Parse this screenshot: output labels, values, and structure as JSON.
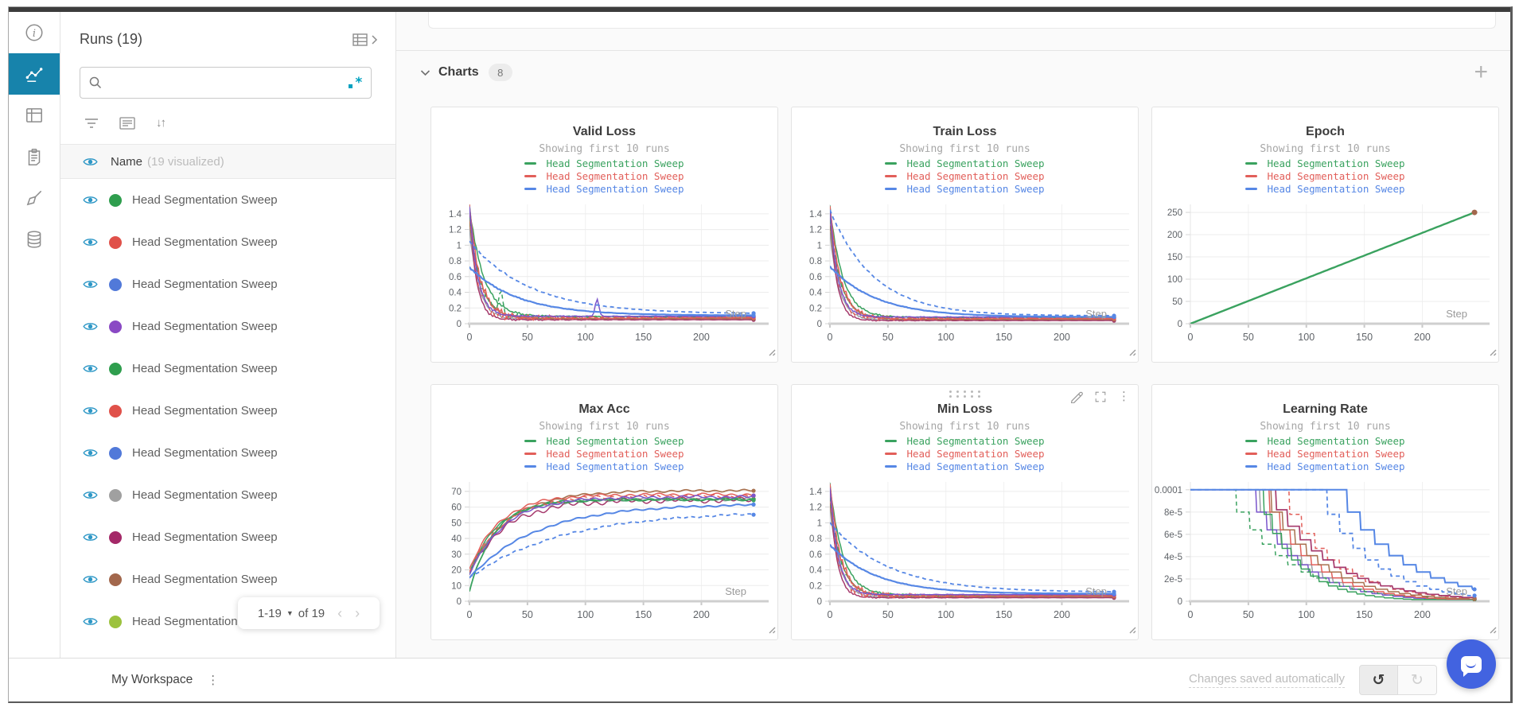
{
  "sidebar": {
    "title": "Runs (19)",
    "name_header": {
      "label": "Name",
      "suffix": "(19 visualized)"
    },
    "run_label": "Head Segmentation Sweep",
    "runs": [
      {
        "color": "#2f9e4e",
        "label": "Head Segmentation Sweep"
      },
      {
        "color": "#e0514a",
        "label": "Head Segmentation Sweep"
      },
      {
        "color": "#5179d9",
        "label": "Head Segmentation Sweep"
      },
      {
        "color": "#8a49c4",
        "label": "Head Segmentation Sweep"
      },
      {
        "color": "#2f9e4e",
        "label": "Head Segmentation Sweep"
      },
      {
        "color": "#e0514a",
        "label": "Head Segmentation Sweep"
      },
      {
        "color": "#5179d9",
        "label": "Head Segmentation Sweep"
      },
      {
        "color": "#a0a0a0",
        "label": "Head Segmentation Sweep"
      },
      {
        "color": "#a42868",
        "label": "Head Segmentation Sweep"
      },
      {
        "color": "#a2674c",
        "label": "Head Segmentation Sweep"
      },
      {
        "color": "#9cc23e",
        "label": "Head Segmentation Sweep"
      }
    ],
    "pagination": {
      "range": "1-19",
      "of": "of 19"
    }
  },
  "charts_section": {
    "title": "Charts",
    "count": "8"
  },
  "workspace_bar": {
    "title": "My Workspace",
    "status": "Changes saved automatically"
  },
  "icons": {
    "undo": "↺",
    "redo": "↻",
    "kebab": "⋮",
    "sort": "↓↑"
  },
  "accent": {
    "nav_active": "#1783ab",
    "eye": "#2d97c6",
    "regex": "#00a1c0",
    "chat_fab": "#4263e0"
  },
  "chart_data": [
    {
      "type": "line",
      "title": "Valid Loss",
      "subtitle": "Showing first 10 runs",
      "xlabel": "Step",
      "legend": [
        {
          "label": "Head Segmentation Sweep",
          "color": "#3aa25f"
        },
        {
          "label": "Head Segmentation Sweep",
          "color": "#e25f5a"
        },
        {
          "label": "Head Segmentation Sweep",
          "color": "#5687e5"
        }
      ],
      "x_ticks": [
        0,
        50,
        100,
        150,
        200
      ],
      "xlim": [
        0,
        258
      ],
      "xmax": 245,
      "ylim": [
        0,
        1.52
      ],
      "y_ticks": [
        {
          "v": 0,
          "l": "0"
        },
        {
          "v": 0.2,
          "l": "0.2"
        },
        {
          "v": 0.4,
          "l": "0.4"
        },
        {
          "v": 0.6,
          "l": "0.6"
        },
        {
          "v": 0.8,
          "l": "0.8"
        },
        {
          "v": 1,
          "l": "1"
        },
        {
          "v": 1.2,
          "l": "1.2"
        },
        {
          "v": 1.4,
          "l": "1.4"
        }
      ],
      "series": [
        {
          "color": "#9aa0a6",
          "model": "decay",
          "y0": 1.2,
          "yf": 0.055,
          "tau": 8,
          "noise": 0.015,
          "phase": 1
        },
        {
          "color": "#a63a6d",
          "model": "decay",
          "y0": 1.45,
          "yf": 0.05,
          "tau": 6,
          "noise": 0.015,
          "phase": 2
        },
        {
          "color": "#a8714f",
          "model": "decay",
          "y0": 1.3,
          "yf": 0.065,
          "tau": 10,
          "noise": 0.01,
          "phase": 3
        },
        {
          "color": "#3aa25f",
          "model": "decay",
          "y0": 1.5,
          "yf": 0.09,
          "tau": 12,
          "noise": 0.02,
          "phase": 4
        },
        {
          "color": "#3aa25f",
          "dash": true,
          "model": "decay",
          "y0": 1.4,
          "yf": 0.085,
          "tau": 9,
          "noise": 0.035,
          "phase": 5,
          "spike": {
            "x": 27,
            "h": 0.27
          }
        },
        {
          "color": "#e25f5a",
          "model": "decay",
          "y0": 1.5,
          "yf": 0.075,
          "tau": 9,
          "noise": 0.05,
          "phase": 6
        },
        {
          "color": "#e25f5a",
          "dash": true,
          "model": "decay",
          "y0": 1.45,
          "yf": 0.08,
          "tau": 7,
          "noise": 0.06,
          "phase": 7
        },
        {
          "color": "#7a55cc",
          "model": "decay",
          "y0": 1.5,
          "yf": 0.095,
          "tau": 7,
          "noise": 0.015,
          "phase": 8,
          "spike": {
            "x": 110,
            "h": 0.22
          }
        },
        {
          "color": "#5687e5",
          "dash": true,
          "model": "decay",
          "y0": 1.05,
          "yf": 0.125,
          "tau": 52,
          "noise": 0.012,
          "phase": 9,
          "w": 1.8
        },
        {
          "color": "#5687e5",
          "model": "decay",
          "y0": 0.72,
          "yf": 0.105,
          "tau": 42,
          "noise": 0.008,
          "phase": 10,
          "w": 2.2
        }
      ]
    },
    {
      "type": "line",
      "title": "Train Loss",
      "subtitle": "Showing first 10 runs",
      "xlabel": "Step",
      "legend": [
        {
          "label": "Head Segmentation Sweep",
          "color": "#3aa25f"
        },
        {
          "label": "Head Segmentation Sweep",
          "color": "#e25f5a"
        },
        {
          "label": "Head Segmentation Sweep",
          "color": "#5687e5"
        }
      ],
      "x_ticks": [
        0,
        50,
        100,
        150,
        200
      ],
      "xlim": [
        0,
        258
      ],
      "xmax": 245,
      "ylim": [
        0,
        1.52
      ],
      "y_ticks": [
        {
          "v": 0,
          "l": "0"
        },
        {
          "v": 0.2,
          "l": "0.2"
        },
        {
          "v": 0.4,
          "l": "0.4"
        },
        {
          "v": 0.6,
          "l": "0.6"
        },
        {
          "v": 0.8,
          "l": "0.8"
        },
        {
          "v": 1,
          "l": "1"
        },
        {
          "v": 1.2,
          "l": "1.2"
        },
        {
          "v": 1.4,
          "l": "1.4"
        }
      ],
      "series": [
        {
          "color": "#9aa0a6",
          "model": "decay",
          "y0": 1.15,
          "yf": 0.045,
          "tau": 8,
          "noise": 0.01,
          "phase": 1
        },
        {
          "color": "#a63a6d",
          "model": "decay",
          "y0": 1.4,
          "yf": 0.04,
          "tau": 6,
          "noise": 0.01,
          "phase": 2
        },
        {
          "color": "#a8714f",
          "model": "decay",
          "y0": 1.25,
          "yf": 0.055,
          "tau": 10,
          "noise": 0.008,
          "phase": 3
        },
        {
          "color": "#3aa25f",
          "model": "decay",
          "y0": 1.5,
          "yf": 0.08,
          "tau": 11,
          "noise": 0.015,
          "phase": 4
        },
        {
          "color": "#3aa25f",
          "dash": true,
          "model": "decay",
          "y0": 1.35,
          "yf": 0.075,
          "tau": 9,
          "noise": 0.02,
          "phase": 5
        },
        {
          "color": "#e25f5a",
          "model": "decay",
          "y0": 1.5,
          "yf": 0.065,
          "tau": 9,
          "noise": 0.035,
          "phase": 6
        },
        {
          "color": "#e25f5a",
          "dash": true,
          "model": "decay",
          "y0": 1.45,
          "yf": 0.07,
          "tau": 7,
          "noise": 0.04,
          "phase": 7
        },
        {
          "color": "#7a55cc",
          "model": "decay",
          "y0": 1.45,
          "yf": 0.085,
          "tau": 7,
          "noise": 0.012,
          "phase": 8
        },
        {
          "color": "#5687e5",
          "dash": true,
          "model": "decay",
          "y0": 1.45,
          "yf": 0.1,
          "tau": 38,
          "noise": 0.01,
          "phase": 9,
          "w": 1.8
        },
        {
          "color": "#5687e5",
          "model": "decay",
          "y0": 0.73,
          "yf": 0.085,
          "tau": 40,
          "noise": 0.006,
          "phase": 10,
          "w": 2.2
        }
      ]
    },
    {
      "type": "line",
      "title": "Epoch",
      "subtitle": "Showing first 10 runs",
      "xlabel": "Step",
      "legend": [
        {
          "label": "Head Segmentation Sweep",
          "color": "#3aa25f"
        },
        {
          "label": "Head Segmentation Sweep",
          "color": "#e25f5a"
        },
        {
          "label": "Head Segmentation Sweep",
          "color": "#5687e5"
        }
      ],
      "x_ticks": [
        0,
        50,
        100,
        150,
        200
      ],
      "xlim": [
        0,
        258
      ],
      "xmax": 245,
      "ylim": [
        0,
        268
      ],
      "y_ticks": [
        {
          "v": 0,
          "l": "0"
        },
        {
          "v": 50,
          "l": "50"
        },
        {
          "v": 100,
          "l": "100"
        },
        {
          "v": 150,
          "l": "150"
        },
        {
          "v": 200,
          "l": "200"
        },
        {
          "v": 250,
          "l": "250"
        }
      ],
      "series": [
        {
          "color": "#3aa25f",
          "model": "linear",
          "y0": 0,
          "y1": 250,
          "w": 2.4,
          "dot_color": "#a2674c",
          "dot_r": 3.5
        }
      ]
    },
    {
      "type": "line",
      "title": "Max Acc",
      "subtitle": "Showing first 10 runs",
      "xlabel": "Step",
      "legend": [
        {
          "label": "Head Segmentation Sweep",
          "color": "#3aa25f"
        },
        {
          "label": "Head Segmentation Sweep",
          "color": "#e25f5a"
        },
        {
          "label": "Head Segmentation Sweep",
          "color": "#5687e5"
        }
      ],
      "x_ticks": [
        0,
        50,
        100,
        150,
        200
      ],
      "xlim": [
        0,
        258
      ],
      "xmax": 245,
      "ylim": [
        0,
        76
      ],
      "y_ticks": [
        {
          "v": 0,
          "l": "0"
        },
        {
          "v": 10,
          "l": "10"
        },
        {
          "v": 20,
          "l": "20"
        },
        {
          "v": 30,
          "l": "30"
        },
        {
          "v": 40,
          "l": "40"
        },
        {
          "v": 50,
          "l": "50"
        },
        {
          "v": 60,
          "l": "60"
        },
        {
          "v": 70,
          "l": "70"
        }
      ],
      "series": [
        {
          "color": "#9aa0a6",
          "model": "rise",
          "y0": 16,
          "yf": 65,
          "tau": 26,
          "noise": 0.8,
          "phase": 1
        },
        {
          "color": "#a8714f",
          "model": "rise",
          "y0": 18,
          "yf": 70.5,
          "tau": 33,
          "noise": 0.6,
          "phase": 2,
          "w": 1.7
        },
        {
          "color": "#a63a6d",
          "model": "rise",
          "y0": 19,
          "yf": 64.5,
          "tau": 32,
          "noise": 1.5,
          "phase": 3
        },
        {
          "color": "#3aa25f",
          "model": "rise",
          "y0": 7,
          "yf": 65,
          "tau": 22,
          "noise": 0.7,
          "phase": 4,
          "w": 1.8
        },
        {
          "color": "#3aa25f",
          "model": "rise",
          "y0": 18,
          "yf": 64.6,
          "tau": 24,
          "noise": 0.5,
          "phase": 5
        },
        {
          "color": "#e25f5a",
          "model": "rise",
          "y0": 20,
          "yf": 68,
          "tau": 26,
          "noise": 0.8,
          "phase": 6
        },
        {
          "color": "#e25f5a",
          "dash": true,
          "model": "rise",
          "y0": 18,
          "yf": 67,
          "tau": 28,
          "noise": 1.0,
          "phase": 7
        },
        {
          "color": "#7a55cc",
          "model": "rise",
          "y0": 17,
          "yf": 66.5,
          "tau": 30,
          "noise": 0.8,
          "phase": 8
        },
        {
          "color": "#5687e5",
          "model": "rise",
          "y0": 15,
          "yf": 62,
          "tau": 58,
          "noise": 0.5,
          "phase": 9,
          "w": 2.0
        },
        {
          "color": "#5687e5",
          "dash": true,
          "model": "rise",
          "y0": 15,
          "yf": 57.5,
          "tau": 80,
          "noise": 0.5,
          "phase": 10,
          "w": 1.8
        }
      ]
    },
    {
      "type": "line",
      "title": "Min Loss",
      "subtitle": "Showing first 10 runs",
      "xlabel": "Step",
      "hover": true,
      "legend": [
        {
          "label": "Head Segmentation Sweep",
          "color": "#3aa25f"
        },
        {
          "label": "Head Segmentation Sweep",
          "color": "#e25f5a"
        },
        {
          "label": "Head Segmentation Sweep",
          "color": "#5687e5"
        }
      ],
      "x_ticks": [
        0,
        50,
        100,
        150,
        200
      ],
      "xlim": [
        0,
        258
      ],
      "xmax": 245,
      "ylim": [
        0,
        1.52
      ],
      "y_ticks": [
        {
          "v": 0,
          "l": "0"
        },
        {
          "v": 0.2,
          "l": "0.2"
        },
        {
          "v": 0.4,
          "l": "0.4"
        },
        {
          "v": 0.6,
          "l": "0.6"
        },
        {
          "v": 0.8,
          "l": "0.8"
        },
        {
          "v": 1,
          "l": "1"
        },
        {
          "v": 1.2,
          "l": "1.2"
        },
        {
          "v": 1.4,
          "l": "1.4"
        }
      ],
      "series": [
        {
          "color": "#9aa0a6",
          "model": "decay",
          "y0": 1.2,
          "yf": 0.05,
          "tau": 8,
          "noise": 0.01,
          "phase": 1
        },
        {
          "color": "#a63a6d",
          "model": "decay",
          "y0": 1.4,
          "yf": 0.045,
          "tau": 6,
          "noise": 0.01,
          "phase": 2
        },
        {
          "color": "#a8714f",
          "model": "decay",
          "y0": 1.25,
          "yf": 0.06,
          "tau": 10,
          "noise": 0.008,
          "phase": 3
        },
        {
          "color": "#3aa25f",
          "model": "decay",
          "y0": 1.5,
          "yf": 0.08,
          "tau": 11,
          "noise": 0.015,
          "phase": 4
        },
        {
          "color": "#3aa25f",
          "dash": true,
          "model": "decay",
          "y0": 1.35,
          "yf": 0.075,
          "tau": 9,
          "noise": 0.02,
          "phase": 5
        },
        {
          "color": "#e25f5a",
          "model": "decay",
          "y0": 1.5,
          "yf": 0.07,
          "tau": 9,
          "noise": 0.045,
          "phase": 6
        },
        {
          "color": "#e25f5a",
          "dash": true,
          "model": "decay",
          "y0": 1.4,
          "yf": 0.075,
          "tau": 7,
          "noise": 0.05,
          "phase": 7
        },
        {
          "color": "#7a55cc",
          "model": "decay",
          "y0": 1.45,
          "yf": 0.085,
          "tau": 7,
          "noise": 0.012,
          "phase": 8
        },
        {
          "color": "#5687e5",
          "dash": true,
          "model": "decay",
          "y0": 1.0,
          "yf": 0.115,
          "tau": 50,
          "noise": 0.012,
          "phase": 9,
          "w": 1.8
        },
        {
          "color": "#5687e5",
          "model": "decay",
          "y0": 0.72,
          "yf": 0.095,
          "tau": 40,
          "noise": 0.006,
          "phase": 10,
          "w": 2.2
        }
      ]
    },
    {
      "type": "line",
      "title": "Learning Rate",
      "subtitle": "Showing first 10 runs",
      "xlabel": "Step",
      "legend": [
        {
          "label": "Head Segmentation Sweep",
          "color": "#3aa25f"
        },
        {
          "label": "Head Segmentation Sweep",
          "color": "#e25f5a"
        },
        {
          "label": "Head Segmentation Sweep",
          "color": "#5687e5"
        }
      ],
      "x_ticks": [
        0,
        50,
        100,
        150,
        200
      ],
      "xlim": [
        0,
        258
      ],
      "xmax": 245,
      "ylim": [
        0,
        0.000107
      ],
      "y_ticks": [
        {
          "v": 0,
          "l": "0"
        },
        {
          "v": 2e-05,
          "l": "2e-5"
        },
        {
          "v": 4e-05,
          "l": "4e-5"
        },
        {
          "v": 6e-05,
          "l": "6e-5"
        },
        {
          "v": 8e-05,
          "l": "8e-5"
        },
        {
          "v": 0.0001,
          "l": "0.0001"
        }
      ],
      "series": [
        {
          "color": "#9aa0a6",
          "model": "step",
          "y0": 0.0001,
          "x0": 60,
          "interval": 9,
          "gamma": 0.8,
          "floor": 1.5e-06
        },
        {
          "color": "#7a55cc",
          "model": "step",
          "y0": 0.0001,
          "x0": 57,
          "interval": 9,
          "gamma": 0.8,
          "floor": 1.5e-06
        },
        {
          "color": "#3aa25f",
          "dash": true,
          "model": "step",
          "y0": 0.0001,
          "x0": 40,
          "interval": 11,
          "gamma": 0.8,
          "floor": 1.5e-06
        },
        {
          "color": "#3aa25f",
          "model": "step",
          "y0": 0.0001,
          "x0": 63,
          "interval": 8,
          "gamma": 0.78,
          "floor": 1.5e-06
        },
        {
          "color": "#e25f5a",
          "model": "step",
          "y0": 0.0001,
          "x0": 68,
          "interval": 9,
          "gamma": 0.8,
          "floor": 2e-06
        },
        {
          "color": "#e25f5a",
          "dash": true,
          "model": "step",
          "y0": 0.0001,
          "x0": 85,
          "interval": 11,
          "gamma": 0.78,
          "floor": 2e-06
        },
        {
          "color": "#a63a6d",
          "model": "step",
          "y0": 0.0001,
          "x0": 74,
          "interval": 10,
          "gamma": 0.82,
          "floor": 2e-06,
          "w": 1.7
        },
        {
          "color": "#a8714f",
          "model": "step",
          "y0": 0.0001,
          "x0": 70,
          "interval": 10,
          "gamma": 0.8,
          "floor": 2e-06
        },
        {
          "color": "#5687e5",
          "dash": true,
          "model": "step",
          "y0": 0.0001,
          "x0": 118,
          "interval": 11,
          "gamma": 0.78,
          "floor": 4e-06,
          "w": 1.8
        },
        {
          "color": "#5687e5",
          "model": "step",
          "y0": 0.0001,
          "x0": 135,
          "interval": 12,
          "gamma": 0.8,
          "floor": 1e-05,
          "w": 2.0
        }
      ]
    }
  ]
}
